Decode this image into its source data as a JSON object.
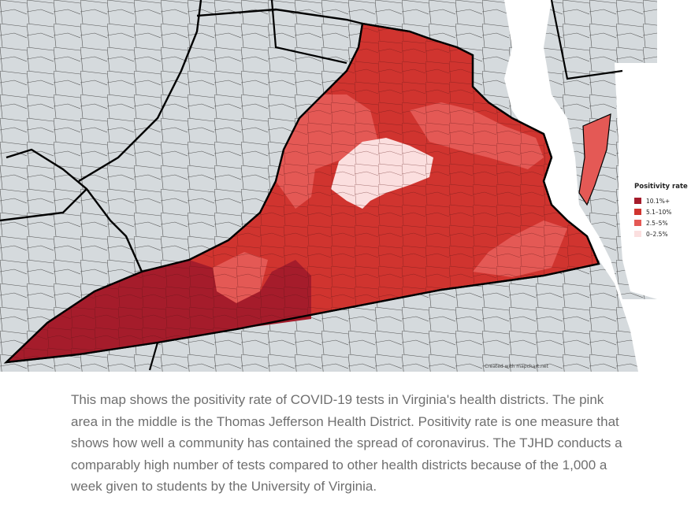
{
  "legend": {
    "title": "Positivity rate",
    "items": [
      {
        "label": "10.1%+",
        "color": "#a51c2b"
      },
      {
        "label": "5.1–10%",
        "color": "#d0342f"
      },
      {
        "label": "2.5–5%",
        "color": "#e45955"
      },
      {
        "label": "0–2.5%",
        "color": "#fbdfdf"
      }
    ]
  },
  "credit": "Created with mapchart.net",
  "caption": "This map shows the positivity rate of COVID-19 tests in Virginia's health districts. The pink area in the middle is the Thomas Jefferson Health District. Positivity rate is one measure that shows how well a community has contained the spread of coronavirus. The TJHD conducts a comparably high number of tests compared to other health districts because of the 1,000 a week given to students by the University of Virginia.",
  "colors": {
    "neighbor_fill": "#d5dadd",
    "county_border": "#4a4a4a",
    "state_border": "#000000",
    "water": "#ffffff"
  }
}
